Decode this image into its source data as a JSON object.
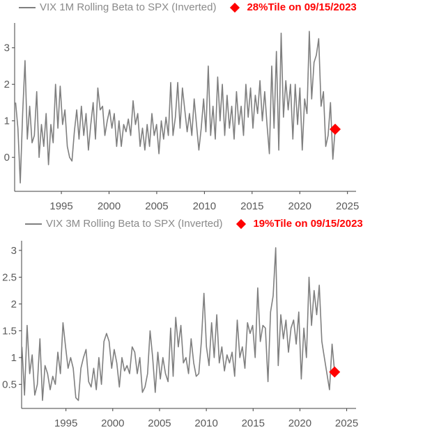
{
  "chart_data": [
    {
      "type": "line",
      "title": "",
      "legend": {
        "series_label": "VIX 1M Rolling Beta to SPX (Inverted)",
        "marker_label": "28%Tile on 09/15/2023",
        "placement": "top"
      },
      "xlabel": "",
      "ylabel": "",
      "xlim": [
        1990.1,
        2025.9
      ],
      "ylim": [
        -0.93,
        3.68
      ],
      "x_ticks": [
        1995,
        2000,
        2005,
        2010,
        2015,
        2020,
        2025
      ],
      "x_tick_labels": [
        "1995",
        "2000",
        "2005",
        "2010",
        "2015",
        "2020",
        "2025"
      ],
      "y_ticks": [
        0,
        1,
        2,
        3
      ],
      "y_tick_labels": [
        "0",
        "1",
        "2",
        "3"
      ],
      "series": [
        {
          "name": "VIX 1M Rolling Beta to SPX (Inverted)",
          "color": "#7f7f7f",
          "x_range": [
            1990.2,
            2023.71
          ],
          "values": [
            1.5,
            0.8,
            -0.7,
            1.2,
            2.65,
            0.5,
            1.4,
            0.4,
            0.6,
            1.8,
            0.0,
            0.9,
            0.3,
            1.2,
            -0.2,
            0.9,
            0.4,
            2.0,
            0.8,
            1.95,
            0.9,
            1.3,
            0.3,
            0.0,
            -0.1,
            0.7,
            1.3,
            0.5,
            1.4,
            0.6,
            1.2,
            0.2,
            0.9,
            1.5,
            0.5,
            1.9,
            1.3,
            1.4,
            0.6,
            1.0,
            1.3,
            0.8,
            1.2,
            0.3,
            1.0,
            0.3,
            0.9,
            0.7,
            1.05,
            0.6,
            1.55,
            0.9,
            1.2,
            0.3,
            0.8,
            0.2,
            0.9,
            0.3,
            1.2,
            0.6,
            0.9,
            0.1,
            1.0,
            0.5,
            1.1,
            0.6,
            2.05,
            0.6,
            1.1,
            2.05,
            0.8,
            1.9,
            1.3,
            0.7,
            1.2,
            0.6,
            1.6,
            0.9,
            0.2,
            0.8,
            1.6,
            0.7,
            2.5,
            0.6,
            1.4,
            0.5,
            2.2,
            1.0,
            2.0,
            0.6,
            1.7,
            0.8,
            1.4,
            0.5,
            1.8,
            0.9,
            1.4,
            0.6,
            2.0,
            1.1,
            1.9,
            0.8,
            1.7,
            1.2,
            2.1,
            1.0,
            1.8,
            0.9,
            0.1,
            2.5,
            0.8,
            2.9,
            0.2,
            3.4,
            1.1,
            2.1,
            1.3,
            2.0,
            0.5,
            2.0,
            0.9,
            1.9,
            0.2,
            1.6,
            1.2,
            3.45,
            1.6,
            2.6,
            2.8,
            3.25,
            1.4,
            1.8,
            0.3,
            0.6,
            1.5,
            -0.05,
            0.77
          ]
        }
      ],
      "marker": {
        "x": 2023.71,
        "y": 0.77,
        "color": "#ff0000",
        "shape": "diamond"
      }
    },
    {
      "type": "line",
      "title": "",
      "legend": {
        "series_label": "VIX 3M Rolling Beta to SPX (Inverted)",
        "marker_label": "19%Tile on 09/15/2023",
        "placement": "top"
      },
      "xlabel": "",
      "ylabel": "",
      "xlim": [
        1990.26,
        2026.0
      ],
      "ylim": [
        0.05,
        3.18
      ],
      "x_ticks": [
        1995,
        2000,
        2005,
        2010,
        2015,
        2020,
        2025
      ],
      "x_tick_labels": [
        "1995",
        "2000",
        "2005",
        "2010",
        "2015",
        "2020",
        "2025"
      ],
      "y_ticks": [
        0.5,
        1,
        1.5,
        2,
        2.5,
        3
      ],
      "y_tick_labels": [
        "0.5",
        "1",
        "1.5",
        "2",
        "2.5",
        "3"
      ],
      "series": [
        {
          "name": "VIX 3M Rolling Beta to SPX (Inverted)",
          "color": "#7f7f7f",
          "x_range": [
            1990.3,
            2023.71
          ],
          "values": [
            1.2,
            0.3,
            1.6,
            0.7,
            1.05,
            0.3,
            0.5,
            1.35,
            0.2,
            0.85,
            0.7,
            0.4,
            0.65,
            0.5,
            1.1,
            0.7,
            1.65,
            1.2,
            0.8,
            1.0,
            0.8,
            0.25,
            0.2,
            0.8,
            1.0,
            1.15,
            0.55,
            0.45,
            0.8,
            0.4,
            1.0,
            0.5,
            1.3,
            1.45,
            1.3,
            0.8,
            1.15,
            0.9,
            0.45,
            1.0,
            0.75,
            0.85,
            0.7,
            1.2,
            1.1,
            0.7,
            1.0,
            0.35,
            0.45,
            0.7,
            1.5,
            1.0,
            0.35,
            1.1,
            0.6,
            1.0,
            0.7,
            0.55,
            1.55,
            0.65,
            1.75,
            1.2,
            1.6,
            0.9,
            1.0,
            0.7,
            1.35,
            0.9,
            0.65,
            0.7,
            1.3,
            2.2,
            1.2,
            0.85,
            1.65,
            1.0,
            1.8,
            0.9,
            1.2,
            0.75,
            1.05,
            0.9,
            1.1,
            0.65,
            1.7,
            1.0,
            1.2,
            0.8,
            1.65,
            1.45,
            1.6,
            1.0,
            2.3,
            1.3,
            1.6,
            1.55,
            0.55,
            1.85,
            2.15,
            3.05,
            0.85,
            1.8,
            1.35,
            1.7,
            1.1,
            1.55,
            1.7,
            1.25,
            1.85,
            0.6,
            1.55,
            1.0,
            2.5,
            1.6,
            2.25,
            1.8,
            2.35,
            1.3,
            1.0,
            0.7,
            0.4,
            1.25,
            0.73
          ]
        }
      ],
      "marker": {
        "x": 2023.71,
        "y": 0.73,
        "color": "#ff0000",
        "shape": "diamond"
      }
    }
  ]
}
